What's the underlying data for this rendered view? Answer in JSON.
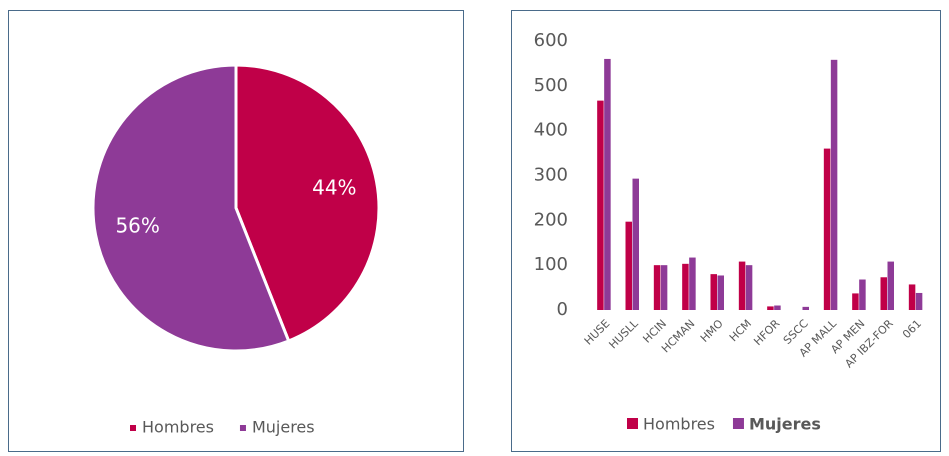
{
  "chart_data": [
    {
      "type": "pie",
      "categories": [
        "Hombres",
        "Mujeres"
      ],
      "values": [
        44,
        56
      ],
      "value_labels": [
        "44%",
        "56%"
      ],
      "colors": [
        "#c00048",
        "#8e3a97"
      ],
      "legend": "bottom"
    },
    {
      "type": "bar",
      "categories": [
        "HUSE",
        "HUSLL",
        "HCIN",
        "HCMAN",
        "HMO",
        "HCM",
        "HFOR",
        "SSCC",
        "AP MALL",
        "AP MEN",
        "AP IBZ-FOR",
        "061"
      ],
      "series": [
        {
          "name": "Hombres",
          "color": "#c00048",
          "values": [
            467,
            197,
            100,
            103,
            80,
            108,
            8,
            0,
            360,
            37,
            73,
            57
          ]
        },
        {
          "name": "Mujeres",
          "color": "#8e3a97",
          "values": [
            560,
            293,
            100,
            117,
            77,
            100,
            10,
            7,
            558,
            68,
            108,
            38
          ]
        }
      ],
      "ylim": [
        0,
        600
      ],
      "yticks": [
        0,
        100,
        200,
        300,
        400,
        500,
        600
      ],
      "grid": false,
      "legend": "bottom"
    }
  ]
}
